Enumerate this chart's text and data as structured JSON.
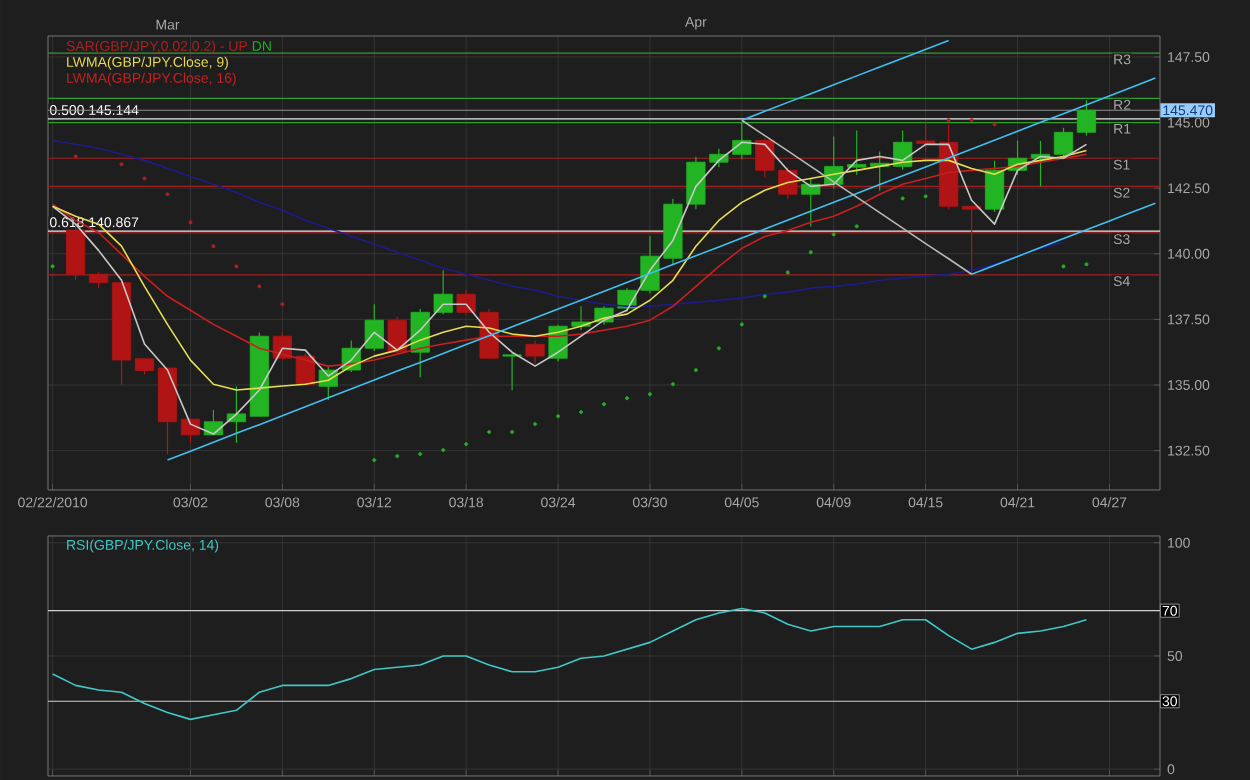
{
  "chart_data": [
    {
      "type": "candlestick",
      "categories": [
        "02/22/2010",
        null,
        null,
        null,
        null,
        null,
        "03/02",
        null,
        null,
        null,
        "03/08",
        null,
        null,
        null,
        "03/12",
        null,
        null,
        null,
        "03/18",
        null,
        null,
        null,
        "03/24",
        null,
        null,
        null,
        "03/30",
        null,
        null,
        null,
        "04/05",
        null,
        null,
        null,
        "04/09",
        null,
        null,
        null,
        "04/15",
        null,
        null,
        null,
        "04/21",
        null,
        null,
        null,
        "04/27",
        null,
        null
      ],
      "ohlc": [
        null,
        [
          140.9,
          141.1,
          139.0,
          139.22
        ],
        [
          139.22,
          139.3,
          138.7,
          138.9
        ],
        [
          138.9,
          138.9,
          135.0,
          135.95
        ],
        [
          136.0,
          136.0,
          135.4,
          135.55
        ],
        [
          135.65,
          135.65,
          132.35,
          133.6
        ],
        [
          133.7,
          133.7,
          132.8,
          133.1
        ],
        [
          133.1,
          134.05,
          133.1,
          133.6
        ],
        [
          133.6,
          134.95,
          132.8,
          133.9
        ],
        [
          133.81,
          137.0,
          133.81,
          136.86
        ],
        [
          136.86,
          137.0,
          136.0,
          136.02
        ],
        [
          136.1,
          136.2,
          135.0,
          135.03
        ],
        [
          134.95,
          135.7,
          134.43,
          135.57
        ],
        [
          135.57,
          136.7,
          135.5,
          136.4
        ],
        [
          136.4,
          138.08,
          136.3,
          137.47
        ],
        [
          137.47,
          137.6,
          136.2,
          136.25
        ],
        [
          136.25,
          137.9,
          135.3,
          137.77
        ],
        [
          137.77,
          139.37,
          137.7,
          138.46
        ],
        [
          138.46,
          138.6,
          137.7,
          137.77
        ],
        [
          137.77,
          137.9,
          136.0,
          136.02
        ],
        [
          136.1,
          136.2,
          134.8,
          136.15
        ],
        [
          136.55,
          136.7,
          135.8,
          136.1
        ],
        [
          136.02,
          137.3,
          135.9,
          137.24
        ],
        [
          137.24,
          138.0,
          137.1,
          137.4
        ],
        [
          137.4,
          138.0,
          137.3,
          137.93
        ],
        [
          137.93,
          138.7,
          137.8,
          138.61
        ],
        [
          138.61,
          140.67,
          138.5,
          139.91
        ],
        [
          139.83,
          142.1,
          139.6,
          141.89
        ],
        [
          141.89,
          143.7,
          141.7,
          143.49
        ],
        [
          143.49,
          144.0,
          143.3,
          143.79
        ],
        [
          143.79,
          145.0,
          143.6,
          144.32
        ],
        [
          144.32,
          144.4,
          142.9,
          143.18
        ],
        [
          143.18,
          143.3,
          142.1,
          142.27
        ],
        [
          142.27,
          142.9,
          141.04,
          142.65
        ],
        [
          142.65,
          144.47,
          142.5,
          143.33
        ],
        [
          143.3,
          144.7,
          143.0,
          143.4
        ],
        [
          143.33,
          143.9,
          142.4,
          143.45
        ],
        [
          143.33,
          144.7,
          143.2,
          144.25
        ],
        [
          144.3,
          145.0,
          143.9,
          144.2
        ],
        [
          144.25,
          144.93,
          141.7,
          141.81
        ],
        [
          141.81,
          141.85,
          139.22,
          141.7
        ],
        [
          141.7,
          143.55,
          141.6,
          143.18
        ],
        [
          143.18,
          144.32,
          143.0,
          143.64
        ],
        [
          143.64,
          144.3,
          142.57,
          143.79
        ],
        [
          143.79,
          144.8,
          143.7,
          144.63
        ],
        [
          144.63,
          145.85,
          144.5,
          145.47
        ],
        null,
        null,
        null
      ],
      "series": [
        {
          "type": "line",
          "color": "#1c1c8a",
          "values": [
            144.32,
            144.17,
            144.02,
            143.79,
            143.56,
            143.26,
            142.95,
            142.65,
            142.34,
            141.96,
            141.66,
            141.28,
            140.97,
            140.67,
            140.36,
            140.06,
            139.75,
            139.45,
            139.22,
            138.99,
            138.76,
            138.61,
            138.38,
            138.23,
            138.08,
            138.0,
            138.0,
            138.08,
            138.15,
            138.23,
            138.31,
            138.46,
            138.54,
            138.69,
            138.76,
            138.84,
            138.99,
            139.07,
            139.15,
            139.22,
            139.37,
            139.6,
            139.91,
            140.21,
            140.44,
            null,
            null,
            null,
            null
          ]
        },
        {
          "type": "line",
          "name": "LWMA(GBP/JPY.Close, 16)",
          "color": "#c82020",
          "values": [
            141.88,
            141.27,
            140.81,
            139.98,
            139.14,
            138.38,
            137.85,
            137.31,
            136.86,
            136.4,
            136.17,
            135.95,
            135.72,
            135.8,
            135.95,
            136.17,
            136.4,
            136.56,
            136.71,
            136.86,
            136.86,
            136.86,
            136.86,
            136.94,
            137.09,
            137.24,
            137.47,
            138.0,
            138.76,
            139.52,
            140.21,
            140.66,
            140.89,
            141.2,
            141.43,
            141.81,
            142.27,
            142.65,
            142.87,
            143.1,
            143.18,
            143.25,
            143.33,
            143.49,
            143.64,
            143.79,
            null,
            null,
            null
          ]
        },
        {
          "type": "line",
          "name": "LWMA(GBP/JPY.Close, 9)",
          "color": "#e8dc50",
          "values": [
            141.81,
            141.43,
            141.13,
            140.29,
            138.76,
            137.31,
            135.95,
            135.03,
            134.81,
            134.88,
            134.96,
            135.03,
            135.18,
            135.72,
            136.1,
            136.33,
            136.71,
            137.01,
            137.24,
            137.17,
            136.94,
            136.86,
            137.01,
            137.24,
            137.55,
            137.7,
            138.23,
            138.99,
            140.29,
            141.27,
            141.96,
            142.42,
            142.72,
            142.87,
            143.03,
            143.18,
            143.33,
            143.49,
            143.56,
            143.56,
            143.25,
            143.03,
            143.41,
            143.56,
            143.71,
            143.94,
            null,
            null,
            null
          ]
        },
        {
          "type": "line",
          "color": "#c8c8c8",
          "values": [
            141.81,
            141.13,
            140.13,
            138.99,
            136.56,
            135.57,
            133.51,
            133.13,
            133.89,
            134.81,
            136.4,
            136.33,
            135.34,
            135.95,
            137.01,
            136.33,
            137.09,
            138.08,
            138.08,
            137.01,
            136.25,
            135.72,
            136.25,
            136.86,
            137.47,
            137.85,
            139.37,
            140.51,
            142.57,
            143.56,
            144.25,
            144.17,
            143.18,
            142.57,
            142.65,
            143.56,
            143.71,
            143.56,
            144.17,
            144.17,
            142.04,
            141.13,
            143.18,
            143.71,
            143.64,
            144.17,
            null,
            null,
            null
          ]
        },
        {
          "type": "scatter",
          "name": "UP",
          "color": "#b02020",
          "values": [
            null,
            143.71,
            null,
            143.41,
            142.87,
            142.27,
            141.2,
            140.29,
            139.52,
            138.76,
            138.08,
            null,
            null,
            null,
            null,
            null,
            null,
            null,
            null,
            null,
            null,
            null,
            null,
            null,
            null,
            null,
            null,
            null,
            null,
            null,
            null,
            null,
            null,
            null,
            null,
            null,
            null,
            null,
            null,
            145.09,
            145.09,
            144.93,
            null,
            null,
            null,
            null,
            null,
            null,
            null
          ]
        },
        {
          "type": "scatter",
          "name": "DN",
          "color": "#20b020",
          "values": [
            139.52,
            null,
            null,
            null,
            null,
            null,
            null,
            null,
            null,
            null,
            null,
            null,
            null,
            null,
            132.14,
            132.29,
            132.37,
            132.52,
            132.75,
            133.21,
            133.21,
            133.51,
            133.81,
            133.97,
            134.27,
            134.5,
            134.65,
            135.03,
            135.57,
            136.4,
            137.31,
            138.38,
            139.29,
            140.06,
            140.74,
            141.05,
            null,
            142.11,
            142.19,
            null,
            null,
            null,
            null,
            null,
            139.52,
            139.6,
            null,
            null,
            null
          ]
        },
        {
          "type": "line",
          "color": "#40c0f0",
          "values": [
            null,
            null,
            null,
            null,
            null,
            132.14,
            132.48,
            132.82,
            133.16,
            133.49,
            133.83,
            134.17,
            134.51,
            134.85,
            135.19,
            135.53,
            135.86,
            136.2,
            136.54,
            136.88,
            137.22,
            137.56,
            137.9,
            138.23,
            138.57,
            138.91,
            139.25,
            139.59,
            139.93,
            140.26,
            140.6,
            140.94,
            141.28,
            141.62,
            141.96,
            142.3,
            142.64,
            142.97,
            143.31,
            143.65,
            143.99,
            144.33,
            144.67,
            145.01,
            145.34,
            145.68,
            146.02,
            146.36,
            146.7
          ]
        },
        {
          "type": "line",
          "color": "#40c0f0",
          "values": [
            null,
            null,
            null,
            null,
            null,
            null,
            null,
            null,
            null,
            null,
            null,
            null,
            null,
            null,
            null,
            null,
            null,
            null,
            null,
            null,
            null,
            null,
            null,
            null,
            null,
            null,
            null,
            null,
            null,
            null,
            145.09,
            145.43,
            145.77,
            146.1,
            146.44,
            146.78,
            147.12,
            147.45,
            147.79,
            148.13,
            null,
            null,
            null,
            null,
            null,
            null,
            null,
            null,
            null
          ]
        },
        {
          "type": "line",
          "color": "#40c0f0",
          "values": [
            null,
            null,
            null,
            null,
            null,
            null,
            null,
            null,
            null,
            null,
            null,
            null,
            null,
            null,
            null,
            null,
            null,
            null,
            null,
            null,
            null,
            null,
            null,
            null,
            null,
            null,
            null,
            null,
            null,
            null,
            null,
            null,
            null,
            null,
            null,
            null,
            null,
            null,
            null,
            null,
            139.22,
            139.56,
            139.9,
            140.24,
            140.58,
            140.92,
            141.25,
            141.59,
            141.93
          ]
        },
        {
          "type": "line",
          "color": "#b8b8b8",
          "values": [
            null,
            null,
            null,
            null,
            null,
            null,
            null,
            null,
            null,
            null,
            null,
            null,
            null,
            null,
            null,
            null,
            null,
            null,
            null,
            null,
            null,
            null,
            null,
            null,
            null,
            null,
            null,
            null,
            null,
            null,
            145.09,
            144.5,
            143.92,
            143.33,
            142.74,
            142.16,
            141.57,
            140.98,
            140.39,
            139.81,
            139.22,
            null,
            null,
            null,
            null,
            null,
            null,
            null,
            null
          ]
        }
      ],
      "legend_title": "SAR(GBP/JPY,0.02,0.2) -",
      "legend": "top left",
      "annotations": [
        "Mar",
        "Apr"
      ],
      "ylim": [
        131.0,
        148.3
      ],
      "yticks": [
        {
          "value": 132.5,
          "label": "132.50"
        },
        {
          "value": 135.0,
          "label": "135.00"
        },
        {
          "value": 137.5,
          "label": "137.50"
        },
        {
          "value": 140.0,
          "label": "140.00"
        },
        {
          "value": 142.5,
          "label": "142.50"
        },
        {
          "value": 145.0,
          "label": "145.00"
        },
        {
          "value": 147.5,
          "label": "147.50"
        }
      ],
      "grid": true,
      "ref_lines": [
        {
          "axis": "y",
          "value": 147.65,
          "label": "R3",
          "color": "#2e9e2e"
        },
        {
          "axis": "y",
          "value": 145.92,
          "label": "R2",
          "color": "#2e9e2e"
        },
        {
          "axis": "y",
          "value": 145.0,
          "label": "R1",
          "color": "#2e9e2e"
        },
        {
          "axis": "y",
          "value": 143.64,
          "label": "S1",
          "color": "#a02020"
        },
        {
          "axis": "y",
          "value": 142.57,
          "label": "S2",
          "color": "#a02020"
        },
        {
          "axis": "y",
          "value": 140.8,
          "label": "S3",
          "color": "#a02020"
        },
        {
          "axis": "y",
          "value": 139.2,
          "label": "S4",
          "color": "#a02020"
        },
        {
          "axis": "y",
          "value": 145.144,
          "label": "0.500 145.144",
          "color": "#e8e8e8"
        },
        {
          "axis": "y",
          "value": 140.867,
          "label": "0.618 140.867",
          "color": "#e8e8e8"
        },
        {
          "axis": "y",
          "value": 145.47,
          "label": "145.470",
          "color": "#909090"
        }
      ]
    },
    {
      "type": "line",
      "categories": [
        null,
        null,
        null,
        null,
        null,
        null,
        null,
        null,
        null,
        null,
        null,
        null,
        null,
        null,
        null,
        null,
        null,
        null,
        null,
        null,
        null,
        null,
        null,
        null,
        null,
        null,
        null,
        null,
        null,
        null,
        null,
        null,
        null,
        null,
        null,
        null,
        null,
        null,
        null,
        null,
        null,
        null,
        null,
        null,
        null,
        null,
        null,
        null,
        null
      ],
      "series": [
        {
          "name": "RSI(GBP/JPY.Close, 14)",
          "color": "#40c8c8",
          "values": [
            42,
            37,
            35,
            34,
            29,
            25,
            22,
            24,
            26,
            34,
            37,
            37,
            37,
            40,
            44,
            45,
            46,
            50,
            50,
            46,
            43,
            43,
            45,
            49,
            50,
            53,
            56,
            61,
            66,
            69,
            71,
            69,
            64,
            61,
            63,
            63,
            63,
            66,
            66,
            59,
            53,
            56,
            60,
            61,
            63,
            66,
            null,
            null,
            null
          ]
        }
      ],
      "legend": "top left",
      "ylim": [
        -3,
        103
      ],
      "yticks": [
        0,
        50,
        100
      ],
      "tick_labels": "y",
      "grid": true,
      "ref_lines": [
        {
          "axis": "y",
          "value": 70,
          "label": "70",
          "color": "#d0d0d0"
        },
        {
          "axis": "y",
          "value": 30,
          "label": "30",
          "color": "#d0d0d0"
        }
      ]
    }
  ]
}
